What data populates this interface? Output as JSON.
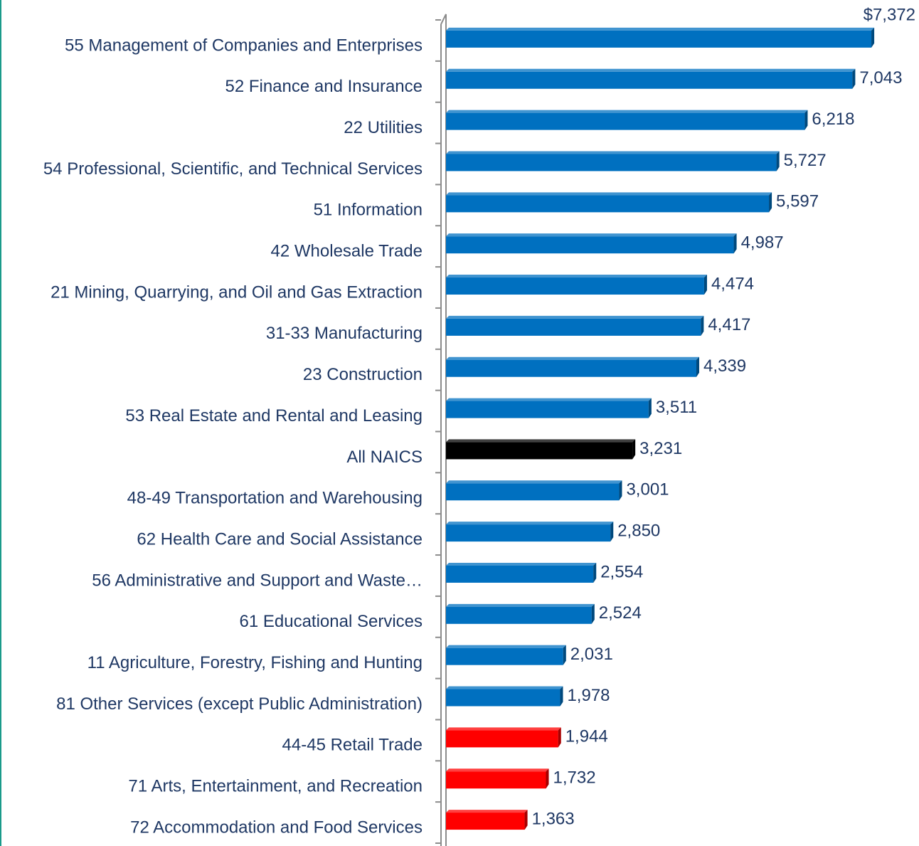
{
  "chart_data": {
    "type": "bar",
    "orientation": "horizontal",
    "categories": [
      "55 Management of Companies and Enterprises",
      "52 Finance and Insurance",
      "22 Utilities",
      "54 Professional, Scientific, and Technical Services",
      "51 Information",
      "42 Wholesale Trade",
      "21 Mining, Quarrying, and Oil and Gas Extraction",
      "31-33 Manufacturing",
      "23 Construction",
      "53 Real Estate and Rental and Leasing",
      "All NAICS",
      "48-49 Transportation and Warehousing",
      "62 Health Care and Social Assistance",
      "56 Administrative and Support and Waste…",
      "61 Educational Services",
      "11 Agriculture, Forestry, Fishing and Hunting",
      "81 Other Services (except Public Administration)",
      "44-45 Retail Trade",
      "71 Arts, Entertainment, and Recreation",
      "72 Accommodation and Food Services"
    ],
    "values": [
      7372,
      7043,
      6218,
      5727,
      5597,
      4987,
      4474,
      4417,
      4339,
      3511,
      3231,
      3001,
      2850,
      2554,
      2524,
      2031,
      1978,
      1944,
      1732,
      1363
    ],
    "value_labels": [
      "$7,372",
      "7,043",
      "6,218",
      "5,727",
      "5,597",
      "4,987",
      "4,474",
      "4,417",
      "4,339",
      "3,511",
      "3,231",
      "3,001",
      "2,850",
      "2,554",
      "2,524",
      "2,031",
      "1,978",
      "1,944",
      "1,732",
      "1,363"
    ],
    "colors": [
      "#0070c0",
      "#0070c0",
      "#0070c0",
      "#0070c0",
      "#0070c0",
      "#0070c0",
      "#0070c0",
      "#0070c0",
      "#0070c0",
      "#0070c0",
      "#000000",
      "#0070c0",
      "#0070c0",
      "#0070c0",
      "#0070c0",
      "#0070c0",
      "#0070c0",
      "#ff0000",
      "#ff0000",
      "#ff0000"
    ],
    "xlim": [
      0,
      8000
    ]
  }
}
